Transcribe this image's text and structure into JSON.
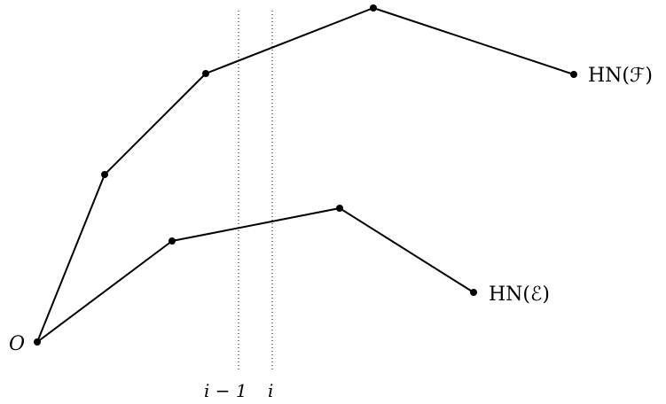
{
  "origin_label": "O",
  "polygons": [
    {
      "id": "F",
      "label": "HN(ℱ)"
    },
    {
      "id": "E",
      "label": "HN(ℰ)"
    }
  ],
  "guides": [
    {
      "id": "i-minus-1",
      "label": "i − 1"
    },
    {
      "id": "i",
      "label": "i"
    }
  ]
}
